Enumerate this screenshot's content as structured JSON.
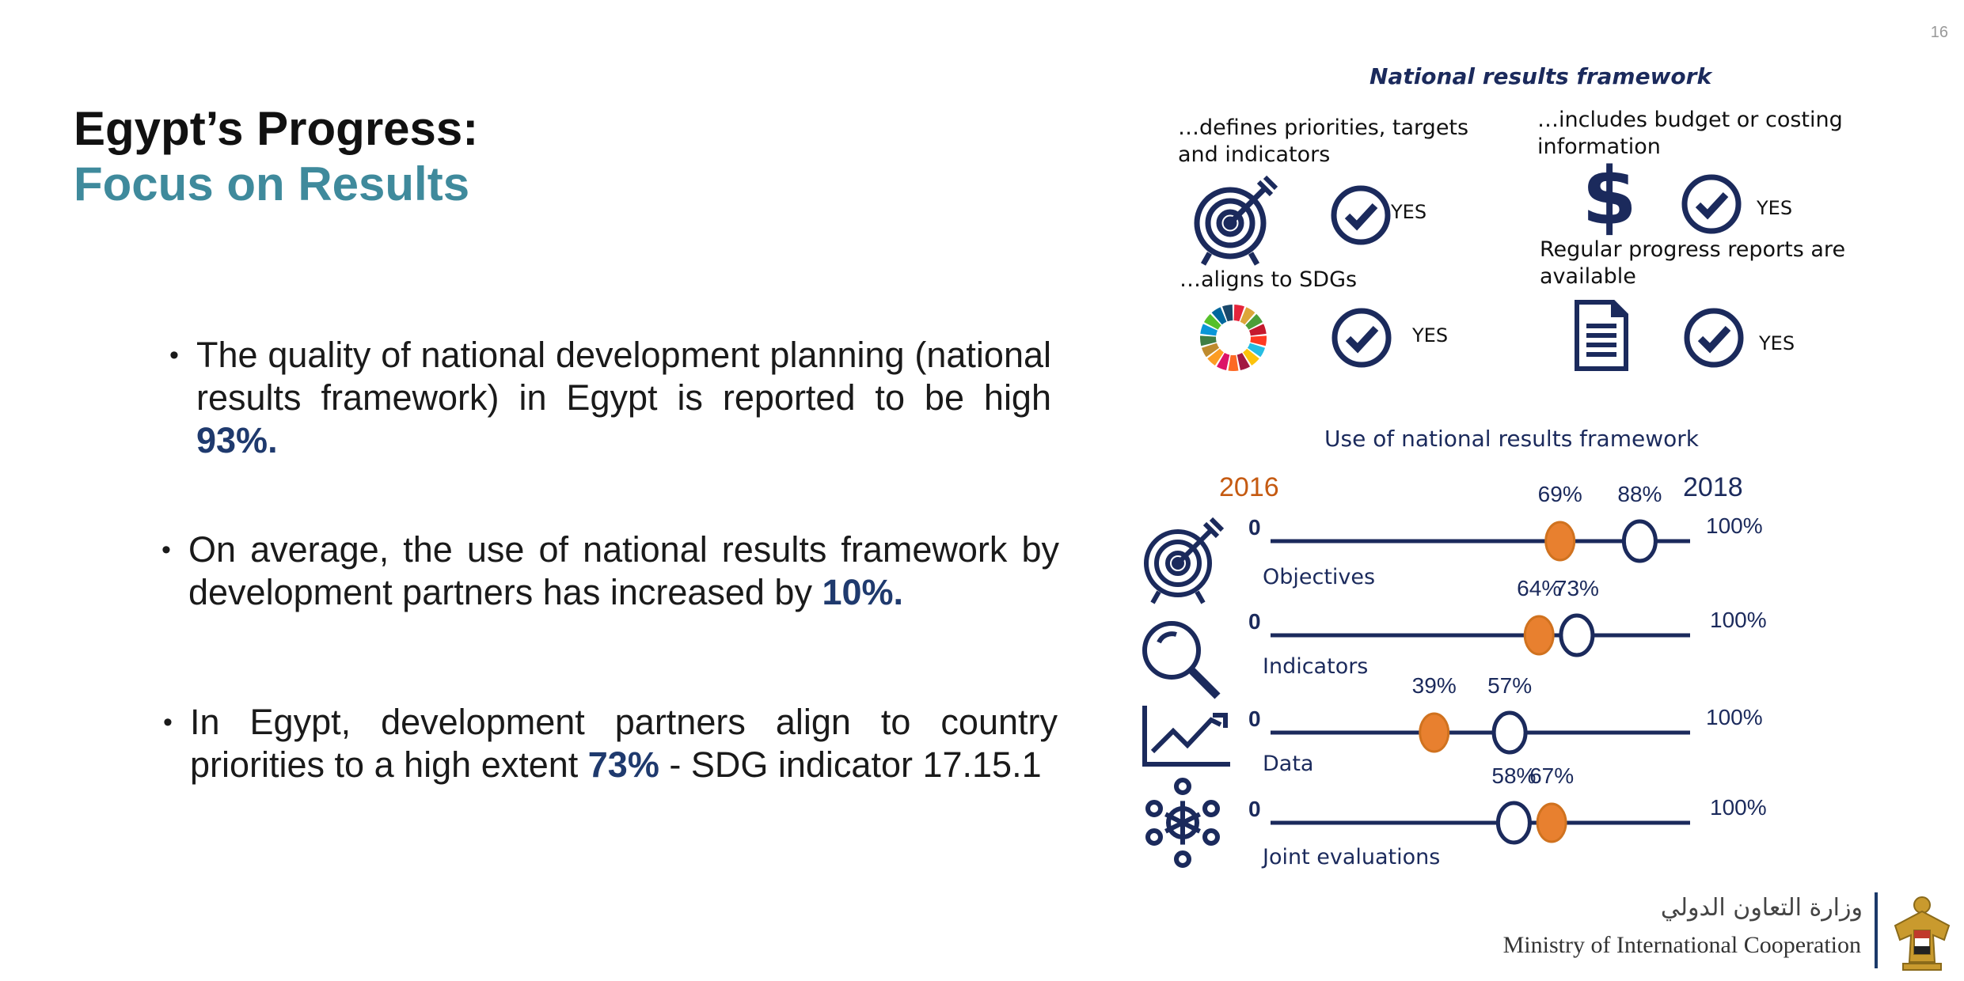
{
  "slide_number": "16",
  "title": {
    "line1": "Egypt’s Progress:",
    "line2": "Focus on Results"
  },
  "bullets": [
    {
      "text": "The quality of national development planning (national results framework) in Egypt is reported to be high ",
      "emph": "93%.",
      "tail": ""
    },
    {
      "text": "On average, the use of national results framework by development partners has increased by ",
      "emph": "10%.",
      "tail": ""
    },
    {
      "text": "In Egypt, development partners align to country priorities to a high extent ",
      "emph": "73%",
      "tail": " - SDG indicator 17.15.1"
    }
  ],
  "framework": {
    "heading": "National results framework",
    "items": [
      {
        "label": "…defines priorities, targets and indicators",
        "status": "YES",
        "icon": "target-icon"
      },
      {
        "label": "…includes budget or costing information",
        "status": "YES",
        "icon": "dollar-icon"
      },
      {
        "label": "…aligns to SDGs",
        "status": "YES",
        "icon": "sdg-wheel-icon"
      },
      {
        "label": "Regular progress reports  are available",
        "status": "YES",
        "icon": "document-icon"
      }
    ]
  },
  "usage": {
    "heading": "Use of national results framework",
    "legend_2016": "2016",
    "legend_2018": "2018",
    "axis_min": "0",
    "axis_max": "100%",
    "colors": {
      "y2016": "#e8802f",
      "y2018": "#ffffff",
      "navy": "#1b2a5c"
    }
  },
  "chart_data": {
    "type": "dot-slider",
    "title": "Use of national results framework",
    "series": [
      {
        "name": "2016"
      },
      {
        "name": "2018"
      }
    ],
    "xlim": [
      0,
      100
    ],
    "rows": [
      {
        "name": "Objectives",
        "v2016": 69,
        "v2018": 88,
        "l2016": "69%",
        "l2018": "88%",
        "icon": "target-icon"
      },
      {
        "name": "Indicators",
        "v2016": 64,
        "v2018": 73,
        "l2016": "64%",
        "l2018": "73%",
        "icon": "magnifier-icon"
      },
      {
        "name": "Data",
        "v2016": 39,
        "v2018": 57,
        "l2016": "39%",
        "l2018": "57%",
        "icon": "line-chart-icon"
      },
      {
        "name": "Joint evaluations",
        "v2016": 67,
        "v2018": 58,
        "l2016": "67%",
        "l2018": "58%",
        "icon": "network-icon"
      }
    ]
  },
  "footer": {
    "arabic": "وزارة التعاون الدولي",
    "english": "Ministry of International Cooperation"
  }
}
